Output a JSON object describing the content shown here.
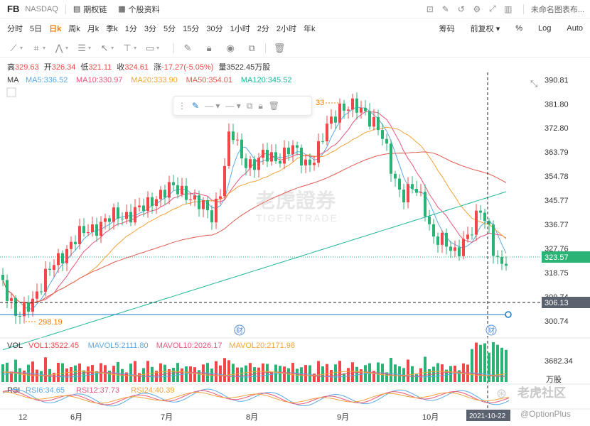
{
  "header": {
    "symbol": "FB",
    "exchange": "NASDAQ",
    "links": [
      {
        "label": "期权链",
        "icon": "options-chain-icon"
      },
      {
        "label": "个股资料",
        "icon": "profile-icon"
      }
    ],
    "right_icons": [
      "screenshot-icon",
      "edit-icon",
      "refresh-icon",
      "settings-icon",
      "fullscreen-icon",
      "layout-icon"
    ],
    "layout_name": "未命名图表布..."
  },
  "periods": [
    "分时",
    "5日",
    "日k",
    "周k",
    "月k",
    "季k",
    "1分",
    "3分",
    "5分",
    "15分",
    "30分",
    "1小时",
    "2分",
    "2小时",
    "年k"
  ],
  "active_period": "日k",
  "period_right": [
    "筹码",
    "前复权 ▾",
    "%",
    "Log",
    "Auto"
  ],
  "tools": [
    "trend-line-icon",
    "rectangle-icon",
    "pattern-icon",
    "fib-icon",
    "arrow-icon",
    "text-tool-icon",
    "price-label-icon",
    "pen-icon",
    "lock-icon",
    "eye-icon",
    "copy-icon",
    "trash-icon"
  ],
  "ohlc": {
    "high_label": "高",
    "high": "329.63",
    "open_label": "开",
    "open": "326.34",
    "low_label": "低",
    "low": "321.11",
    "close_label": "收",
    "close": "324.61",
    "change_label": "涨",
    "change": "-17.27(-5.05%)",
    "volume_label": "量",
    "volume": "3522.45万股"
  },
  "ma": {
    "label": "MA",
    "items": [
      {
        "text": "MA5:336.52",
        "color": "#5aa9e6"
      },
      {
        "text": "MA10:330.97",
        "color": "#e8567a"
      },
      {
        "text": "MA20:333.90",
        "color": "#f2a33a"
      },
      {
        "text": "MA50:354.01",
        "color": "#e05b4f"
      },
      {
        "text": "MA120:345.52",
        "color": "#1fb59a"
      }
    ]
  },
  "price_axis": [
    "390.81",
    "381.80",
    "372.80",
    "363.79",
    "354.78",
    "345.77",
    "336.77",
    "327.76",
    "318.75",
    "309.74",
    "300.74"
  ],
  "current_price": "323.57",
  "crosshair_price": "306.13",
  "low_marker": "298.19",
  "high_marker": "33",
  "earnings_label": "财",
  "x_labels": [
    "12",
    "6月",
    "7月",
    "8月",
    "9月",
    "10月"
  ],
  "crosshair_date": "2021-10-22",
  "vol": {
    "label": "VOL",
    "items": [
      {
        "text": "VOL1:3522.45",
        "color": "#f04848"
      },
      {
        "text": "MAVOL5:2111.80",
        "color": "#5aa9e6"
      },
      {
        "text": "MAVOL10:2026.17",
        "color": "#e8567a"
      },
      {
        "text": "MAVOL20:2171.98",
        "color": "#f2a33a"
      }
    ],
    "axis_value": "3682.34",
    "axis_unit": "万股"
  },
  "rsi": {
    "label": "RSI",
    "items": [
      {
        "text": "RSI6:34.65",
        "color": "#5aa9e6"
      },
      {
        "text": "RSI12:37.73",
        "color": "#e8567a"
      },
      {
        "text": "RSI24:40.39",
        "color": "#f2a33a"
      }
    ]
  },
  "watermark": {
    "cn": "老虎證券",
    "en": "TIGER TRADE"
  },
  "brand": {
    "name": "老虎社区",
    "handle": "@OptionPlus"
  },
  "colors": {
    "up": "#f04848",
    "down": "#2bb375",
    "accent": "#f57c00",
    "blue_line": "#1677c9"
  },
  "chart_data": {
    "type": "candlestick",
    "y_axis": {
      "min": 296,
      "max": 393,
      "ticks": [
        390.81,
        381.8,
        372.8,
        363.79,
        354.78,
        345.77,
        336.77,
        327.76,
        318.75,
        309.74,
        300.74
      ]
    },
    "last_bar": {
      "open": 326.34,
      "high": 329.63,
      "low": 321.11,
      "close": 324.61
    },
    "period_low": 298.19,
    "current_price": 323.57,
    "reference_level": 306.13,
    "ma_lines": [
      {
        "name": "MA5",
        "color": "#5aa9e6",
        "last": 336.52
      },
      {
        "name": "MA10",
        "color": "#e8567a",
        "last": 330.97
      },
      {
        "name": "MA20",
        "color": "#f2a33a",
        "last": 333.9
      },
      {
        "name": "MA50",
        "color": "#e05b4f",
        "last": 354.01
      },
      {
        "name": "MA120",
        "color": "#1fb59a",
        "last": 345.52
      }
    ]
  }
}
